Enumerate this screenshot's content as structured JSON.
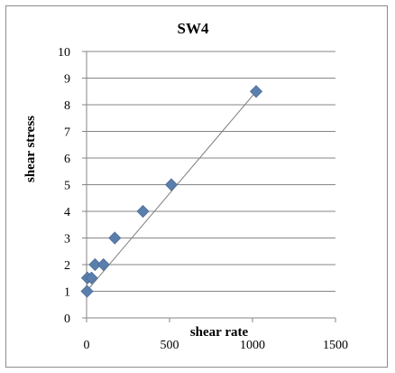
{
  "chart_data": {
    "type": "scatter",
    "title": "SW4",
    "xlabel": "shear rate",
    "ylabel": "shear stress",
    "xlim": [
      0,
      1500
    ],
    "ylim": [
      0,
      10
    ],
    "x_ticks": [
      "0",
      "500",
      "1000",
      "1500"
    ],
    "y_ticks": [
      "0",
      "1",
      "2",
      "3",
      "4",
      "5",
      "6",
      "7",
      "8",
      "9",
      "10"
    ],
    "grid": "horizontal",
    "legend": "none",
    "series": [
      {
        "points": [
          {
            "x": 3,
            "y": 1
          },
          {
            "x": 5,
            "y": 1.5
          },
          {
            "x": 30,
            "y": 1.5
          },
          {
            "x": 51,
            "y": 2
          },
          {
            "x": 102,
            "y": 2
          },
          {
            "x": 170,
            "y": 3
          },
          {
            "x": 340,
            "y": 4
          },
          {
            "x": 511,
            "y": 5
          },
          {
            "x": 1022,
            "y": 8.5
          }
        ],
        "color": "#5b7fad",
        "marker": "diamond"
      }
    ],
    "trendline": {
      "type": "linear",
      "from": {
        "x": 0,
        "y": 1.0
      },
      "to": {
        "x": 1022,
        "y": 8.5
      },
      "color": "#7f7f7f"
    }
  }
}
